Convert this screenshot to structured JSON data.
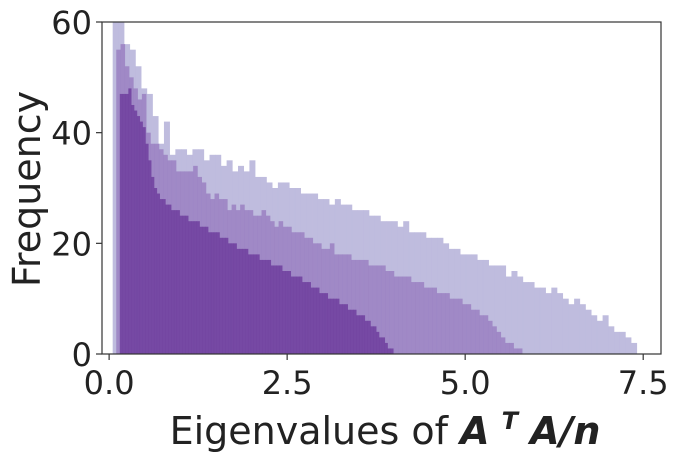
{
  "chart_data": {
    "type": "bar",
    "subtype": "overlaid-histogram",
    "title": "",
    "xlabel": "Eigenvalues of ",
    "xlabel_math": {
      "base1": "A",
      "superscript": "T",
      "base2": "A/n"
    },
    "ylabel": "Frequency",
    "xlim": [
      -0.1,
      7.75
    ],
    "ylim": [
      0,
      60
    ],
    "xticks": [
      0.0,
      2.5,
      5.0,
      7.5
    ],
    "xtick_labels": [
      "0.0",
      "2.5",
      "5.0",
      "7.5"
    ],
    "yticks": [
      0,
      20,
      40,
      60
    ],
    "ytick_labels": [
      "0",
      "20",
      "40",
      "60"
    ],
    "grid": false,
    "legend": "none",
    "colors": {
      "lightest": "#bcb8dc",
      "medium": "#9a80c2",
      "darkest": "#6f3e9e"
    },
    "series": [
      {
        "support": [
          0.05,
          7.43
        ],
        "bin_width": 0.08,
        "values": [
          60,
          60,
          56,
          55,
          52,
          48,
          47,
          43,
          38,
          42,
          36,
          37,
          37,
          36,
          37,
          37,
          35,
          36,
          36,
          34,
          35,
          33,
          34,
          33,
          35,
          32,
          32,
          31,
          30,
          31,
          31,
          30,
          30,
          29,
          29,
          29,
          28,
          28,
          27,
          28,
          27,
          27,
          26,
          26,
          26,
          25,
          25,
          24,
          24,
          24,
          23,
          24,
          22,
          22,
          22,
          21,
          21,
          21,
          20,
          19,
          19,
          18,
          18,
          18,
          17,
          17,
          16,
          16,
          16,
          14,
          15,
          14,
          13,
          13,
          12,
          12,
          11,
          12,
          11,
          10,
          9,
          10,
          9,
          8,
          7,
          6,
          7,
          5,
          4,
          4,
          3,
          2
        ]
      },
      {
        "support": [
          0.1,
          5.78
        ],
        "bin_width": 0.06,
        "values": [
          55,
          56,
          52,
          50,
          48,
          46,
          47,
          40,
          38,
          38,
          37,
          36,
          35,
          35,
          33,
          33,
          33,
          33,
          34,
          32,
          31,
          29,
          28,
          29,
          28,
          28,
          26,
          27,
          26,
          27,
          26,
          26,
          25,
          25,
          26,
          25,
          24,
          23,
          24,
          23,
          23,
          22,
          22,
          22,
          21,
          21,
          20,
          20,
          19,
          19,
          20,
          18,
          18,
          18,
          18,
          17,
          17,
          17,
          17,
          16,
          16,
          16,
          16,
          15,
          15,
          14,
          14,
          14,
          14,
          13,
          13,
          13,
          12,
          12,
          12,
          11,
          11,
          11,
          10,
          10,
          10,
          9,
          9,
          8,
          8,
          7,
          7,
          6,
          5,
          4,
          3,
          2,
          2,
          1,
          1
        ]
      },
      {
        "support": [
          0.15,
          3.97
        ],
        "bin_width": 0.04,
        "values": [
          47,
          47,
          47,
          48,
          45,
          44,
          43,
          42,
          41,
          38,
          35,
          32,
          30,
          29,
          28,
          28,
          27,
          27,
          26,
          26,
          26,
          25,
          25,
          25,
          24,
          24,
          24,
          24,
          23,
          23,
          23,
          22,
          22,
          22,
          22,
          21,
          21,
          21,
          20,
          20,
          20,
          19,
          19,
          19,
          19,
          18,
          18,
          18,
          18,
          17,
          17,
          17,
          17,
          16,
          16,
          16,
          16,
          15,
          15,
          15,
          14,
          14,
          14,
          14,
          13,
          13,
          13,
          12,
          12,
          12,
          11,
          11,
          11,
          10,
          10,
          10,
          10,
          9,
          9,
          9,
          8,
          8,
          8,
          7,
          7,
          7,
          6,
          6,
          5,
          5,
          4,
          3,
          3,
          2,
          1,
          1
        ]
      }
    ]
  }
}
